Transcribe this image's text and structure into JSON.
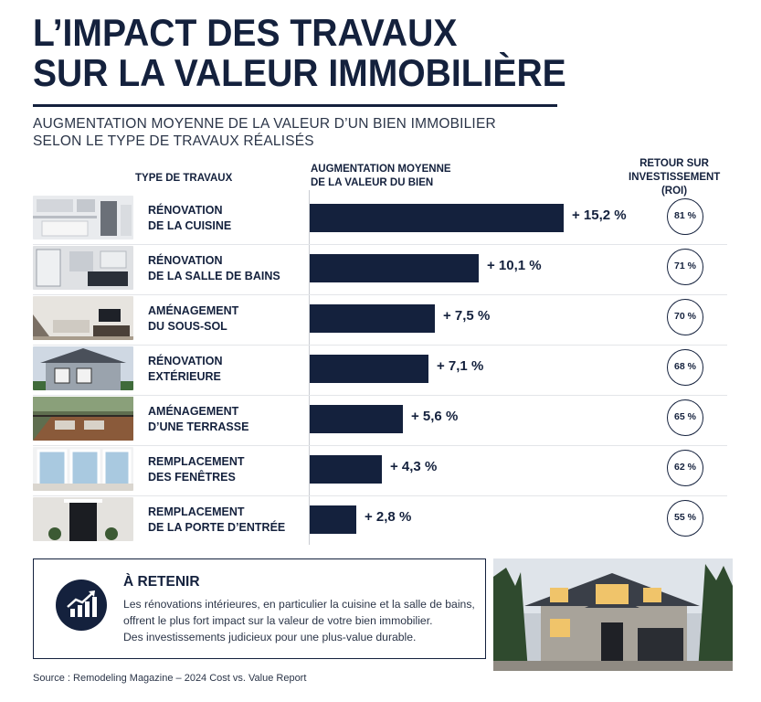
{
  "title_line1": "L’IMPACT DES TRAVAUX",
  "title_line2": "SUR LA VALEUR IMMOBILIÈRE",
  "subtitle_line1": "AUGMENTATION MOYENNE DE LA VALEUR D’UN BIEN IMMOBILIER",
  "subtitle_line2": "SELON LE TYPE DE TRAVAUX RÉALISÉS",
  "columns": {
    "type": "TYPE DE TRAVAUX",
    "increase_line1": "AUGMENTATION MOYENNE",
    "increase_line2": "DE LA VALEUR DU BIEN",
    "roi_line1": "RETOUR SUR",
    "roi_line2": "INVESTISSEMENT (ROI)"
  },
  "colors": {
    "navy": "#14213d",
    "text": "#2b3548",
    "rule": "#c9ccd2"
  },
  "chart_data": {
    "type": "bar",
    "orientation": "horizontal",
    "categories": [
      "RÉNOVATION DE LA CUISINE",
      "RÉNOVATION DE LA SALLE DE BAINS",
      "AMÉNAGEMENT DU SOUS-SOL",
      "RÉNOVATION EXTÉRIEURE",
      "AMÉNAGEMENT D’UNE TERRASSE",
      "REMPLACEMENT DES FENÊTRES",
      "REMPLACEMENT DE LA PORTE D’ENTRÉE"
    ],
    "series": [
      {
        "values": [
          15.2,
          10.1,
          7.5,
          7.1,
          5.6,
          4.3,
          2.8
        ]
      }
    ],
    "value_labels": [
      "+ 15,2 %",
      "+ 10,1 %",
      "+ 7,5 %",
      "+ 7,1 %",
      "+ 5,6 %",
      "+ 4,3 %",
      "+ 2,8 %"
    ],
    "roi": [
      81,
      71,
      70,
      68,
      65,
      62,
      55
    ],
    "roi_labels": [
      "81 %",
      "71 %",
      "70 %",
      "68 %",
      "65 %",
      "62 %",
      "55 %"
    ],
    "xlim": [
      0,
      16
    ],
    "grid": false,
    "legend": "none"
  },
  "rows": [
    {
      "line1": "RÉNOVATION",
      "line2": "DE LA CUISINE",
      "icon": "kitchen-photo"
    },
    {
      "line1": "RÉNOVATION",
      "line2": "DE LA SALLE DE BAINS",
      "icon": "bathroom-photo"
    },
    {
      "line1": "AMÉNAGEMENT",
      "line2": "DU SOUS-SOL",
      "icon": "basement-photo"
    },
    {
      "line1": "RÉNOVATION",
      "line2": "EXTÉRIEURE",
      "icon": "exterior-photo"
    },
    {
      "line1": "AMÉNAGEMENT",
      "line2": "D’UNE TERRASSE",
      "icon": "terrace-photo"
    },
    {
      "line1": "REMPLACEMENT",
      "line2": "DES FENÊTRES",
      "icon": "windows-photo"
    },
    {
      "line1": "REMPLACEMENT",
      "line2": "DE LA PORTE D’ENTRÉE",
      "icon": "front-door-photo"
    }
  ],
  "retenir": {
    "title": "À RETENIR",
    "text_line1": "Les rénovations intérieures, en particulier la cuisine et la salle de bains,",
    "text_line2": "offrent le plus fort impact sur la valeur de votre bien immobilier.",
    "text_line3": "Des investissements judicieux pour une plus-value durable.",
    "icon": "chart-growth-icon"
  },
  "source": "Source : Remodeling Magazine – 2024 Cost vs. Value Report"
}
